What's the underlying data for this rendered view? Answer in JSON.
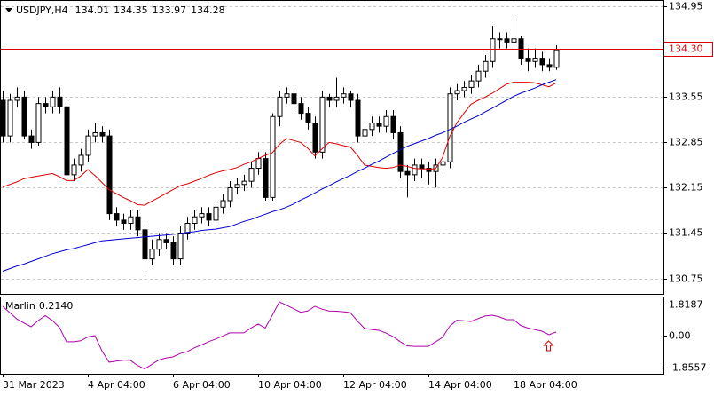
{
  "chart_data": [
    {
      "type": "candlestick",
      "title": "USDJPY,H4",
      "categories": [
        "31 Mar 2023",
        null,
        null,
        null,
        null,
        null,
        null,
        null,
        null,
        null,
        null,
        null,
        "4 Apr 04:00",
        null,
        null,
        null,
        null,
        null,
        null,
        null,
        null,
        null,
        null,
        null,
        "6 Apr 04:00",
        null,
        null,
        null,
        null,
        null,
        null,
        null,
        null,
        null,
        null,
        null,
        "10 Apr 04:00",
        null,
        null,
        null,
        null,
        null,
        null,
        null,
        null,
        null,
        null,
        null,
        "12 Apr 04:00",
        null,
        null,
        null,
        null,
        null,
        null,
        null,
        null,
        null,
        null,
        null,
        "14 Apr 04:00",
        null,
        null,
        null,
        null,
        null,
        null,
        null,
        null,
        null,
        null,
        null,
        "18 Apr 04:00",
        null,
        null,
        null,
        null,
        null,
        null
      ],
      "open": [
        133.5,
        132.95,
        133.5,
        133.55,
        132.95,
        132.85,
        133.45,
        133.4,
        133.55,
        133.4,
        132.35,
        132.5,
        132.65,
        132.95,
        133.0,
        132.95,
        131.75,
        131.65,
        131.6,
        131.7,
        131.5,
        131.05,
        131.2,
        131.35,
        131.3,
        131.05,
        131.45,
        131.6,
        131.7,
        131.75,
        131.65,
        131.85,
        131.95,
        132.15,
        132.2,
        132.25,
        132.45,
        132.6,
        132.0,
        133.25,
        133.55,
        133.6,
        133.45,
        133.3,
        133.15,
        132.7,
        133.55,
        133.5,
        133.55,
        133.6,
        133.5,
        132.95,
        133.05,
        133.15,
        133.1,
        133.25,
        133.0,
        132.4,
        132.35,
        132.5,
        132.45,
        132.4,
        132.5,
        132.55,
        133.6,
        133.65,
        133.7,
        133.8,
        133.95,
        134.1,
        134.45,
        134.45,
        134.4,
        134.45,
        134.15,
        134.1,
        134.15,
        134.05,
        134.01
      ],
      "high": [
        133.65,
        133.6,
        133.7,
        133.65,
        133.05,
        133.55,
        133.55,
        133.65,
        133.7,
        133.5,
        132.6,
        132.75,
        133.05,
        133.15,
        133.1,
        133.05,
        131.85,
        131.75,
        131.8,
        131.8,
        131.6,
        131.35,
        131.45,
        131.45,
        131.4,
        131.55,
        131.7,
        131.8,
        131.85,
        131.85,
        131.95,
        132.05,
        132.25,
        132.3,
        132.35,
        132.55,
        132.7,
        132.7,
        133.3,
        133.65,
        133.7,
        133.7,
        133.55,
        133.4,
        133.25,
        133.65,
        133.6,
        133.85,
        133.7,
        133.65,
        133.6,
        133.15,
        133.25,
        133.25,
        133.35,
        133.35,
        133.1,
        132.5,
        132.6,
        132.6,
        132.55,
        132.6,
        132.65,
        133.7,
        133.75,
        133.8,
        133.9,
        134.05,
        134.2,
        134.65,
        134.55,
        134.55,
        134.75,
        134.5,
        134.3,
        134.3,
        134.25,
        134.15,
        134.35
      ],
      "low": [
        132.85,
        132.85,
        133.4,
        132.9,
        132.75,
        132.8,
        133.3,
        133.3,
        133.3,
        132.25,
        132.25,
        132.4,
        132.55,
        132.85,
        132.85,
        131.65,
        131.55,
        131.5,
        131.5,
        131.4,
        130.85,
        130.95,
        131.1,
        131.2,
        130.95,
        130.95,
        131.35,
        131.5,
        131.6,
        131.55,
        131.55,
        131.75,
        131.85,
        132.05,
        132.1,
        132.15,
        132.35,
        131.95,
        131.95,
        133.1,
        133.45,
        133.35,
        133.2,
        133.05,
        132.6,
        132.6,
        133.4,
        133.4,
        133.45,
        133.4,
        132.85,
        132.85,
        132.95,
        133.0,
        133.0,
        132.9,
        132.3,
        132.0,
        132.25,
        132.3,
        132.2,
        132.15,
        132.4,
        132.45,
        133.5,
        133.55,
        133.6,
        133.7,
        133.85,
        134.0,
        134.3,
        134.3,
        134.3,
        134.05,
        133.95,
        134.0,
        133.95,
        133.95,
        133.97
      ],
      "close": [
        132.95,
        133.5,
        133.55,
        132.95,
        132.85,
        133.45,
        133.4,
        133.55,
        133.4,
        132.35,
        132.5,
        132.65,
        132.95,
        133.0,
        132.95,
        131.75,
        131.65,
        131.6,
        131.7,
        131.5,
        131.05,
        131.2,
        131.35,
        131.3,
        131.05,
        131.45,
        131.6,
        131.7,
        131.75,
        131.65,
        131.85,
        131.95,
        132.15,
        132.2,
        132.25,
        132.45,
        132.6,
        132.0,
        133.25,
        133.55,
        133.6,
        133.45,
        133.3,
        133.15,
        132.7,
        133.55,
        133.5,
        133.55,
        133.6,
        133.5,
        132.95,
        133.05,
        133.15,
        133.1,
        133.25,
        133.0,
        132.4,
        132.35,
        132.5,
        132.45,
        132.4,
        132.5,
        132.55,
        133.6,
        133.65,
        133.7,
        133.8,
        133.95,
        134.1,
        134.45,
        134.45,
        134.4,
        134.45,
        134.15,
        134.1,
        134.15,
        134.05,
        134.01,
        134.28
      ],
      "up_color": "#ffffff",
      "down_color": "#000000",
      "wick_color": "#000000",
      "series": [
        {
          "color": "#e00000",
          "values": [
            132.16,
            132.2,
            132.24,
            132.29,
            132.31,
            132.33,
            132.35,
            132.37,
            132.32,
            132.26,
            132.26,
            132.33,
            132.43,
            132.34,
            132.23,
            132.12,
            132.06,
            132.0,
            131.95,
            131.89,
            131.88,
            131.94,
            132.0,
            132.06,
            132.12,
            132.18,
            132.21,
            132.25,
            132.29,
            132.34,
            132.38,
            132.41,
            132.43,
            132.46,
            132.51,
            132.55,
            132.6,
            132.65,
            132.69,
            132.82,
            132.91,
            132.88,
            132.85,
            132.76,
            132.64,
            132.75,
            132.85,
            132.83,
            132.8,
            132.78,
            132.65,
            132.5,
            132.48,
            132.46,
            132.45,
            132.46,
            132.5,
            132.48,
            132.45,
            132.44,
            132.44,
            132.44,
            132.62,
            132.94,
            133.15,
            133.3,
            133.44,
            133.5,
            133.55,
            133.61,
            133.68,
            133.75,
            133.78,
            133.78,
            133.78,
            133.77,
            133.74,
            133.71,
            133.77
          ]
        },
        {
          "color": "#0000d0",
          "values": [
            130.86,
            130.9,
            130.94,
            130.97,
            131.01,
            131.05,
            131.09,
            131.13,
            131.16,
            131.19,
            131.21,
            131.24,
            131.27,
            131.3,
            131.33,
            131.34,
            131.35,
            131.36,
            131.37,
            131.38,
            131.39,
            131.4,
            131.41,
            131.42,
            131.43,
            131.44,
            131.46,
            131.47,
            131.49,
            131.5,
            131.51,
            131.53,
            131.55,
            131.59,
            131.63,
            131.66,
            131.7,
            131.74,
            131.78,
            131.81,
            131.85,
            131.9,
            131.96,
            132.01,
            132.07,
            132.13,
            132.18,
            132.24,
            132.29,
            132.34,
            132.4,
            132.45,
            132.51,
            132.56,
            132.62,
            132.68,
            132.73,
            132.79,
            132.83,
            132.87,
            132.91,
            132.96,
            133.0,
            133.05,
            133.1,
            133.16,
            133.21,
            133.26,
            133.32,
            133.38,
            133.44,
            133.5,
            133.56,
            133.61,
            133.65,
            133.69,
            133.74,
            133.78,
            133.82
          ]
        }
      ],
      "price_line": {
        "value": 134.3,
        "label": "134.30",
        "color": "#e00000"
      },
      "ylim": [
        130.51,
        135.05
      ],
      "yticks": [
        134.95,
        133.55,
        132.85,
        132.15,
        131.45,
        130.75
      ],
      "grid": true
    },
    {
      "type": "line",
      "series": [
        {
          "name": "Marlin",
          "color": "#b000b0",
          "values": [
            1.72,
            1.35,
            0.98,
            0.74,
            0.52,
            0.88,
            1.17,
            0.89,
            0.48,
            -0.36,
            -0.36,
            -0.3,
            -0.08,
            0.0,
            -0.9,
            -1.56,
            -1.5,
            -1.45,
            -1.45,
            -1.75,
            -1.96,
            -1.7,
            -1.43,
            -1.32,
            -1.25,
            -1.05,
            -0.95,
            -0.72,
            -0.55,
            -0.36,
            -0.2,
            -0.03,
            0.16,
            0.16,
            0.16,
            0.45,
            0.68,
            0.45,
            1.2,
            1.98,
            1.78,
            1.58,
            1.37,
            1.45,
            1.72,
            1.55,
            1.45,
            1.43,
            1.4,
            1.35,
            0.85,
            0.42,
            0.36,
            0.31,
            0.16,
            -0.05,
            -0.35,
            -0.6,
            -0.63,
            -0.63,
            -0.63,
            -0.37,
            -0.1,
            0.55,
            0.9,
            0.87,
            0.83,
            1.0,
            1.15,
            1.2,
            1.1,
            0.94,
            0.94,
            0.6,
            0.45,
            0.35,
            0.26,
            0.05,
            0.214
          ]
        }
      ],
      "legend_value": {
        "value": 0.214,
        "label": "0.2140"
      },
      "ylim": [
        -2.24,
        2.24
      ],
      "yticks": [
        1.8187,
        {
          "value": 0,
          "label": "0.00"
        },
        -1.8557
      ],
      "grid": false
    }
  ]
}
